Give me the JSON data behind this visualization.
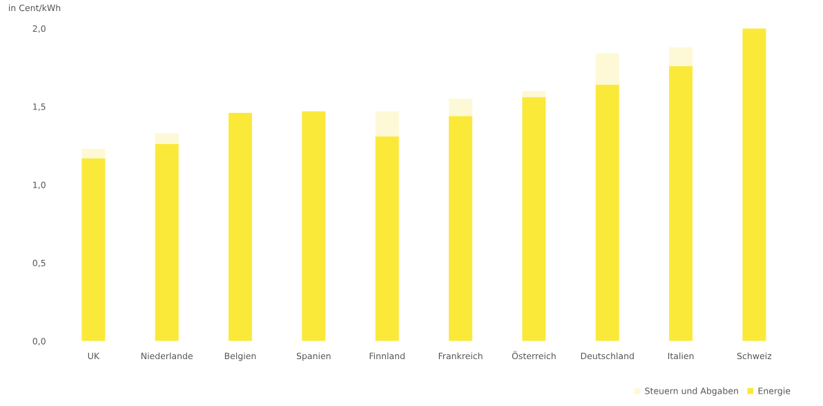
{
  "chart_data": {
    "type": "bar",
    "stacked": true,
    "ylabel": "in Cent/kWh",
    "categories": [
      "UK",
      "Niederlande",
      "Belgien",
      "Spanien",
      "Finnland",
      "Frankreich",
      "Österreich",
      "Deutschland",
      "Italien",
      "Schweiz"
    ],
    "series": [
      {
        "name": "Energie",
        "color": "#fbe93a",
        "values": [
          1.17,
          1.26,
          1.46,
          1.47,
          1.31,
          1.44,
          1.56,
          1.64,
          1.76,
          2.0
        ]
      },
      {
        "name": "Steuern und Abgaben",
        "color": "#fdf9d6",
        "values": [
          0.06,
          0.07,
          0,
          0,
          0.16,
          0.11,
          0.04,
          0.2,
          0.12,
          0
        ]
      }
    ],
    "ylim": [
      0,
      2.0
    ],
    "yticks": [
      {
        "value": 0,
        "label": "0,0"
      },
      {
        "value": 0.5,
        "label": "0,5"
      },
      {
        "value": 1.0,
        "label": "1,0"
      },
      {
        "value": 1.5,
        "label": "1,5"
      },
      {
        "value": 2.0,
        "label": "2,0"
      }
    ],
    "grid": false,
    "legend": "bottom right"
  }
}
